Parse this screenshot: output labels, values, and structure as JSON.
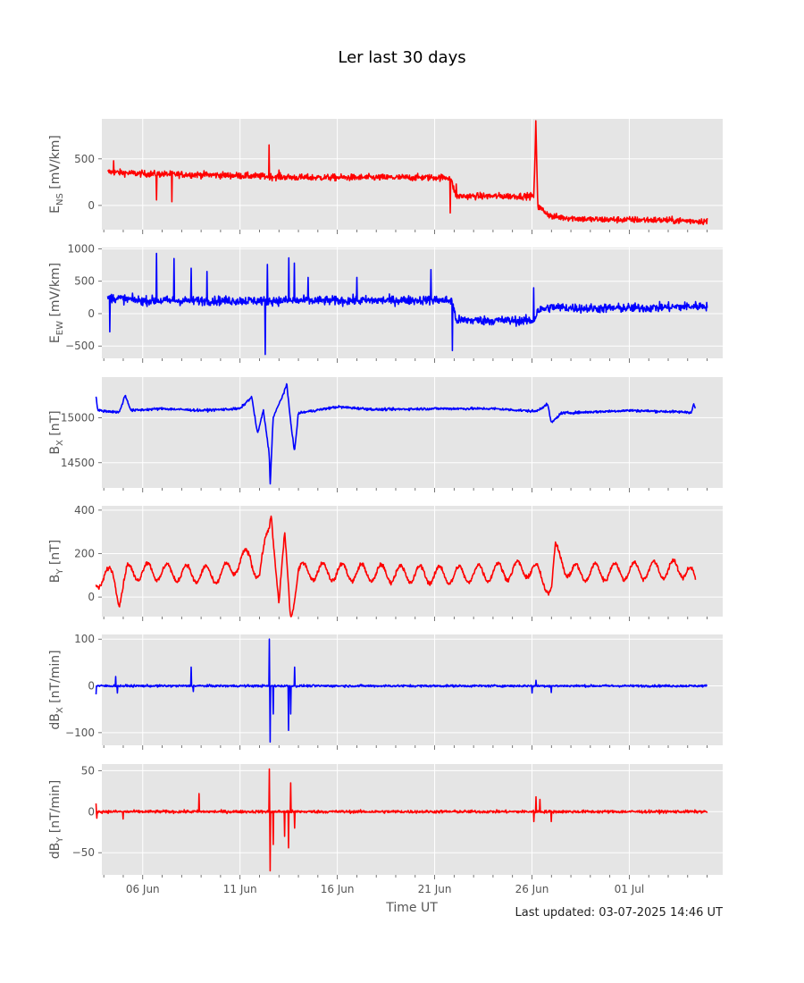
{
  "chart_data": {
    "type": "line",
    "title": "Ler last 30 days",
    "xlabel": "Time UT",
    "footer": "Last updated: 03-07-2025 14:46 UT",
    "x_range_days": [
      -2.1,
      29.8
    ],
    "x_ticks": [
      {
        "day": 0,
        "label": "06 Jun"
      },
      {
        "day": 5,
        "label": "11 Jun"
      },
      {
        "day": 10,
        "label": "16 Jun"
      },
      {
        "day": 15,
        "label": "21 Jun"
      },
      {
        "day": 20,
        "label": "26 Jun"
      },
      {
        "day": 25,
        "label": "01 Jul"
      }
    ],
    "grid": true,
    "background": "#e5e5e5",
    "panels": [
      {
        "key": "ens",
        "ylabel": "E_NS [mV/km]",
        "ylabel_main": "E",
        "ylabel_sub": "NS",
        "ylabel_rest": " [mV/km]",
        "color": "#ff0000",
        "ylim": [
          -260,
          930
        ],
        "yticks": [
          0,
          500
        ],
        "anchors": [
          [
            -1.8,
            360
          ],
          [
            0,
            340
          ],
          [
            3,
            330
          ],
          [
            5,
            320
          ],
          [
            6.5,
            310
          ],
          [
            8,
            300
          ],
          [
            10,
            300
          ],
          [
            12,
            300
          ],
          [
            14,
            300
          ],
          [
            15,
            300
          ],
          [
            15.8,
            300
          ],
          [
            16.1,
            100
          ],
          [
            20,
            100
          ],
          [
            20.1,
            100
          ],
          [
            20.2,
            880
          ],
          [
            20.3,
            -10
          ],
          [
            21,
            -120
          ],
          [
            23,
            -150
          ],
          [
            26,
            -155
          ],
          [
            29,
            -170
          ]
        ],
        "noise": 30,
        "spikes": [
          [
            -1.5,
            480
          ],
          [
            0.7,
            60
          ],
          [
            1.5,
            40
          ],
          [
            6.5,
            650
          ],
          [
            7,
            380
          ],
          [
            15.8,
            -80
          ],
          [
            16.1,
            230
          ]
        ]
      },
      {
        "key": "eew",
        "ylabel": "E_EW [mV/km]",
        "ylabel_main": "E",
        "ylabel_sub": "EW",
        "ylabel_rest": " [mV/km]",
        "color": "#0000ff",
        "ylim": [
          -690,
          1020
        ],
        "yticks": [
          -500,
          0,
          500,
          1000
        ],
        "anchors": [
          [
            -1.8,
            250
          ],
          [
            0,
            200
          ],
          [
            3,
            200
          ],
          [
            6,
            200
          ],
          [
            10,
            200
          ],
          [
            15,
            210
          ],
          [
            15.9,
            200
          ],
          [
            16.1,
            -100
          ],
          [
            20,
            -110
          ],
          [
            20.1,
            -110
          ],
          [
            20.3,
            50
          ],
          [
            21,
            100
          ],
          [
            23,
            80
          ],
          [
            26,
            90
          ],
          [
            29,
            120
          ]
        ],
        "noise": 60,
        "spikes": [
          [
            -1.7,
            -280
          ],
          [
            0.7,
            -330
          ],
          [
            0.7,
            930
          ],
          [
            1.6,
            850
          ],
          [
            2.5,
            700
          ],
          [
            3.3,
            650
          ],
          [
            6.3,
            -630
          ],
          [
            6.4,
            760
          ],
          [
            7.5,
            860
          ],
          [
            7.8,
            780
          ],
          [
            8.5,
            560
          ],
          [
            11,
            560
          ],
          [
            14.8,
            680
          ],
          [
            15.9,
            -570
          ],
          [
            20.1,
            400
          ]
        ]
      },
      {
        "key": "bx",
        "ylabel": "B_X [nT]",
        "ylabel_main": "B",
        "ylabel_sub": "X",
        "ylabel_rest": " [nT]",
        "color": "#0000ff",
        "ylim": [
          14220,
          15450
        ],
        "yticks": [
          14500,
          15000
        ],
        "anchors": [
          [
            -2.4,
            15230
          ],
          [
            -2.3,
            15080
          ],
          [
            -1.2,
            15060
          ],
          [
            -0.9,
            15250
          ],
          [
            -0.6,
            15080
          ],
          [
            1,
            15100
          ],
          [
            3,
            15080
          ],
          [
            5,
            15100
          ],
          [
            5.6,
            15230
          ],
          [
            5.9,
            14820
          ],
          [
            6.2,
            15080
          ],
          [
            6.5,
            14600
          ],
          [
            6.55,
            14250
          ],
          [
            6.7,
            15000
          ],
          [
            7.2,
            15250
          ],
          [
            7.4,
            15370
          ],
          [
            7.6,
            14960
          ],
          [
            7.8,
            14620
          ],
          [
            8,
            15050
          ],
          [
            10,
            15120
          ],
          [
            12,
            15090
          ],
          [
            15,
            15100
          ],
          [
            18,
            15100
          ],
          [
            20.2,
            15070
          ],
          [
            20.8,
            15150
          ],
          [
            21,
            14940
          ],
          [
            21.5,
            15050
          ],
          [
            25,
            15080
          ],
          [
            28.2,
            15060
          ],
          [
            28.3,
            15150
          ],
          [
            28.4,
            15100
          ]
        ],
        "noise": 12,
        "spikes": []
      },
      {
        "key": "by",
        "ylabel": "B_Y [nT]",
        "ylabel_main": "B",
        "ylabel_sub": "Y",
        "ylabel_rest": " [nT]",
        "color": "#ff0000",
        "ylim": [
          -90,
          420
        ],
        "yticks": [
          0,
          200,
          400
        ],
        "anchors": [
          [
            -2.4,
            80
          ],
          [
            -1.5,
            100
          ],
          [
            -1.2,
            0
          ],
          [
            -0.8,
            110
          ],
          [
            0,
            120
          ],
          [
            2,
            110
          ],
          [
            4,
            100
          ],
          [
            5.5,
            190
          ],
          [
            6,
            100
          ],
          [
            6.5,
            320
          ],
          [
            6.6,
            400
          ],
          [
            6.8,
            200
          ],
          [
            7,
            -30
          ],
          [
            7.3,
            260
          ],
          [
            7.6,
            -80
          ],
          [
            8,
            120
          ],
          [
            12,
            110
          ],
          [
            16,
            100
          ],
          [
            20,
            130
          ],
          [
            21,
            40
          ],
          [
            21.2,
            210
          ],
          [
            22,
            110
          ],
          [
            28,
            130
          ],
          [
            28.4,
            60
          ]
        ],
        "noise": 8,
        "wave": [
          40,
          1.0
        ],
        "spikes": []
      },
      {
        "key": "dbx",
        "ylabel": "dB_X [nT/min]",
        "ylabel_main": "dB",
        "ylabel_sub": "X",
        "ylabel_rest": " [nT/min]",
        "color": "#0000ff",
        "ylim": [
          -127,
          110
        ],
        "yticks": [
          -100,
          0,
          100
        ],
        "anchors": [
          [
            -2.4,
            0
          ],
          [
            29,
            0
          ]
        ],
        "noise": 2,
        "spikes": [
          [
            -2.4,
            -18
          ],
          [
            -1.4,
            20
          ],
          [
            -1.3,
            -15
          ],
          [
            2.5,
            40
          ],
          [
            2.6,
            -12
          ],
          [
            6.5,
            100
          ],
          [
            6.55,
            -120
          ],
          [
            6.7,
            -60
          ],
          [
            7.5,
            -95
          ],
          [
            7.6,
            -60
          ],
          [
            7.8,
            40
          ],
          [
            20,
            -15
          ],
          [
            20.2,
            12
          ],
          [
            21,
            -14
          ]
        ]
      },
      {
        "key": "dby",
        "ylabel": "dB_Y [nT/min]",
        "ylabel_main": "dB",
        "ylabel_sub": "Y",
        "ylabel_rest": " [nT/min]",
        "color": "#ff0000",
        "ylim": [
          -77,
          58
        ],
        "yticks": [
          -50,
          0,
          50
        ],
        "anchors": [
          [
            -2.4,
            0
          ],
          [
            29,
            0
          ]
        ],
        "noise": 1.5,
        "spikes": [
          [
            -2.4,
            10
          ],
          [
            -2.35,
            -8
          ],
          [
            -1,
            -9
          ],
          [
            2.9,
            22
          ],
          [
            6.5,
            52
          ],
          [
            6.55,
            -72
          ],
          [
            6.7,
            -40
          ],
          [
            7.3,
            -30
          ],
          [
            7.5,
            -44
          ],
          [
            7.6,
            35
          ],
          [
            7.8,
            -20
          ],
          [
            20.1,
            -12
          ],
          [
            20.2,
            18
          ],
          [
            20.4,
            15
          ],
          [
            21,
            -12
          ]
        ]
      }
    ]
  }
}
